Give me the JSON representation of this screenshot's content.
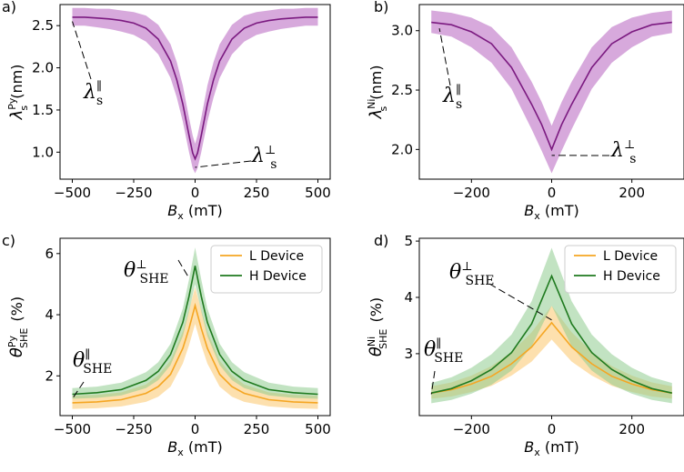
{
  "colors": {
    "purple": "#7b1a80",
    "purple_band": "#c27bc9",
    "orange": "#f5a623",
    "orange_band": "#fcd38c",
    "green": "#1f7a1f",
    "green_band": "#8fcc8f"
  },
  "chart_data": [
    {
      "panel": "a)",
      "type": "line",
      "xlabel_main": "B",
      "xlabel_sub": "x",
      "xlabel_unit": " (mT)",
      "ylabel_main": "λ",
      "ylabel_sub": "s",
      "ylabel_sup": "Py",
      "ylabel_unit": " (nm)",
      "xlim": [
        -550,
        550
      ],
      "ylim": [
        0.68,
        2.75
      ],
      "xticks": [
        -500,
        -250,
        0,
        250,
        500
      ],
      "xtick_labels": [
        "−500",
        "−250",
        "0",
        "250",
        "500"
      ],
      "yticks": [
        1.0,
        1.5,
        2.0,
        2.5
      ],
      "ytick_labels": [
        "1.0",
        "1.5",
        "2.0",
        "2.5"
      ],
      "series": [
        {
          "x": [
            -500,
            -450,
            -400,
            -350,
            -300,
            -250,
            -200,
            -150,
            -100,
            -75,
            -50,
            -25,
            -10,
            0,
            10,
            25,
            50,
            75,
            100,
            150,
            200,
            250,
            300,
            350,
            400,
            450,
            500
          ],
          "y": [
            2.6,
            2.6,
            2.59,
            2.58,
            2.56,
            2.53,
            2.47,
            2.34,
            2.08,
            1.86,
            1.57,
            1.2,
            0.99,
            0.92,
            0.99,
            1.2,
            1.57,
            1.86,
            2.08,
            2.34,
            2.47,
            2.53,
            2.56,
            2.58,
            2.59,
            2.6,
            2.6
          ],
          "lower": [
            2.5,
            2.5,
            2.48,
            2.46,
            2.43,
            2.39,
            2.31,
            2.16,
            1.88,
            1.65,
            1.36,
            1.0,
            0.81,
            0.75,
            0.81,
            1.0,
            1.36,
            1.65,
            1.88,
            2.16,
            2.31,
            2.39,
            2.43,
            2.46,
            2.48,
            2.5,
            2.5
          ],
          "upper": [
            2.71,
            2.71,
            2.7,
            2.7,
            2.68,
            2.66,
            2.62,
            2.51,
            2.28,
            2.07,
            1.79,
            1.41,
            1.2,
            1.1,
            1.2,
            1.41,
            1.79,
            2.07,
            2.28,
            2.51,
            2.62,
            2.66,
            2.68,
            2.7,
            2.7,
            2.71,
            2.71
          ]
        }
      ],
      "annotations": [
        {
          "main": "λ",
          "sub": "s",
          "sup": "∥",
          "target": [
            -500,
            2.55
          ]
        },
        {
          "main": "λ",
          "sub": "s",
          "sup": "⊥",
          "target": [
            0,
            0.82
          ]
        }
      ]
    },
    {
      "panel": "b)",
      "type": "line",
      "xlabel_main": "B",
      "xlabel_sub": "x",
      "xlabel_unit": " (mT)",
      "ylabel_main": "λ",
      "ylabel_sub": "s",
      "ylabel_sup": "Ni",
      "ylabel_unit": " (nm)",
      "xlim": [
        -330,
        330
      ],
      "ylim": [
        1.75,
        3.22
      ],
      "xticks": [
        -200,
        0,
        200
      ],
      "xtick_labels": [
        "−200",
        "0",
        "200"
      ],
      "yticks": [
        2.0,
        2.5,
        3.0
      ],
      "ytick_labels": [
        "2.0",
        "2.5",
        "3.0"
      ],
      "series": [
        {
          "x": [
            -300,
            -250,
            -200,
            -150,
            -100,
            -50,
            -25,
            0,
            25,
            50,
            100,
            150,
            200,
            250,
            300
          ],
          "y": [
            3.07,
            3.05,
            2.99,
            2.89,
            2.69,
            2.38,
            2.21,
            2.0,
            2.21,
            2.38,
            2.69,
            2.89,
            2.99,
            3.05,
            3.07
          ],
          "lower": [
            2.98,
            2.95,
            2.86,
            2.73,
            2.51,
            2.17,
            1.99,
            1.8,
            1.99,
            2.17,
            2.51,
            2.73,
            2.86,
            2.95,
            2.98
          ],
          "upper": [
            3.17,
            3.15,
            3.11,
            3.03,
            2.86,
            2.57,
            2.4,
            2.2,
            2.4,
            2.57,
            2.86,
            3.03,
            3.11,
            3.15,
            3.17
          ]
        }
      ],
      "annotations": [
        {
          "main": "λ",
          "sub": "s",
          "sup": "∥",
          "target": [
            -280,
            3.02
          ]
        },
        {
          "main": "λ",
          "sub": "s",
          "sup": "⊥",
          "target": [
            0,
            1.95
          ]
        }
      ]
    },
    {
      "panel": "c)",
      "type": "line",
      "xlabel_main": "B",
      "xlabel_sub": "x",
      "xlabel_unit": " (mT)",
      "ylabel_main": "θ",
      "ylabel_sub": "SHE",
      "ylabel_sup": "Py",
      "ylabel_unit": " (%)",
      "xlim": [
        -550,
        550
      ],
      "ylim": [
        0.7,
        6.5
      ],
      "xticks": [
        -500,
        -250,
        0,
        250,
        500
      ],
      "xtick_labels": [
        "−500",
        "−250",
        "0",
        "250",
        "500"
      ],
      "yticks": [
        2,
        4,
        6
      ],
      "ytick_labels": [
        "2",
        "4",
        "6"
      ],
      "legend": {
        "position": "top-right",
        "entries": [
          "L Device",
          "H Device"
        ]
      },
      "series": [
        {
          "name": "L Device",
          "x": [
            -500,
            -400,
            -300,
            -200,
            -150,
            -100,
            -50,
            -25,
            0,
            25,
            50,
            100,
            150,
            200,
            300,
            400,
            500
          ],
          "y": [
            1.12,
            1.15,
            1.22,
            1.43,
            1.65,
            2.05,
            2.9,
            3.55,
            4.3,
            3.55,
            2.9,
            2.05,
            1.65,
            1.43,
            1.22,
            1.15,
            1.12
          ],
          "lower": [
            0.92,
            0.94,
            1.0,
            1.15,
            1.32,
            1.65,
            2.4,
            3.0,
            3.7,
            3.0,
            2.4,
            1.65,
            1.32,
            1.15,
            1.0,
            0.94,
            0.92
          ],
          "upper": [
            1.35,
            1.38,
            1.46,
            1.72,
            2.02,
            2.5,
            3.45,
            4.15,
            4.9,
            4.15,
            3.45,
            2.5,
            2.02,
            1.72,
            1.46,
            1.38,
            1.35
          ]
        },
        {
          "name": "H Device",
          "x": [
            -500,
            -400,
            -300,
            -200,
            -150,
            -100,
            -50,
            -25,
            0,
            25,
            50,
            100,
            150,
            200,
            300,
            400,
            500
          ],
          "y": [
            1.4,
            1.45,
            1.55,
            1.85,
            2.15,
            2.7,
            3.75,
            4.6,
            5.6,
            4.6,
            3.75,
            2.7,
            2.15,
            1.85,
            1.55,
            1.45,
            1.4
          ],
          "lower": [
            1.25,
            1.28,
            1.36,
            1.6,
            1.86,
            2.35,
            3.3,
            4.1,
            5.0,
            4.1,
            3.3,
            2.35,
            1.86,
            1.6,
            1.36,
            1.28,
            1.25
          ],
          "upper": [
            1.6,
            1.65,
            1.78,
            2.12,
            2.45,
            3.05,
            4.2,
            5.15,
            6.2,
            5.15,
            4.2,
            3.05,
            2.45,
            2.12,
            1.78,
            1.65,
            1.6
          ]
        }
      ],
      "annotations": [
        {
          "main": "θ",
          "sub": "SHE",
          "sup": "⊥",
          "target": [
            -25,
            5.2
          ]
        },
        {
          "main": "θ",
          "sub": "SHE",
          "sup": "∥",
          "target": [
            -500,
            1.25
          ]
        }
      ]
    },
    {
      "panel": "d)",
      "type": "line",
      "xlabel_main": "B",
      "xlabel_sub": "x",
      "xlabel_unit": " (mT)",
      "ylabel_main": "θ",
      "ylabel_sub": "SHE",
      "ylabel_sup": "Ni",
      "ylabel_unit": " (%)",
      "xlim": [
        -330,
        330
      ],
      "ylim": [
        1.9,
        5.05
      ],
      "xticks": [
        -200,
        0,
        200
      ],
      "xtick_labels": [
        "−200",
        "0",
        "200"
      ],
      "yticks": [
        3,
        4,
        5
      ],
      "ytick_labels": [
        "3",
        "4",
        "5"
      ],
      "legend": {
        "position": "top-right",
        "entries": [
          "L Device",
          "H Device"
        ]
      },
      "series": [
        {
          "name": "L Device",
          "x": [
            -300,
            -250,
            -200,
            -150,
            -100,
            -50,
            0,
            50,
            100,
            150,
            200,
            250,
            300
          ],
          "y": [
            2.3,
            2.36,
            2.46,
            2.6,
            2.82,
            3.12,
            3.55,
            3.12,
            2.82,
            2.6,
            2.46,
            2.36,
            2.3
          ],
          "lower": [
            2.2,
            2.24,
            2.32,
            2.43,
            2.61,
            2.86,
            3.25,
            2.86,
            2.61,
            2.43,
            2.32,
            2.24,
            2.2
          ],
          "upper": [
            2.42,
            2.49,
            2.61,
            2.78,
            3.03,
            3.38,
            3.85,
            3.38,
            3.03,
            2.78,
            2.61,
            2.49,
            2.42
          ]
        },
        {
          "name": "H Device",
          "x": [
            -300,
            -250,
            -200,
            -150,
            -100,
            -50,
            0,
            50,
            100,
            150,
            200,
            250,
            300
          ],
          "y": [
            2.3,
            2.38,
            2.52,
            2.72,
            3.02,
            3.53,
            4.38,
            3.53,
            3.02,
            2.72,
            2.52,
            2.38,
            2.3
          ],
          "lower": [
            2.12,
            2.18,
            2.29,
            2.45,
            2.7,
            3.13,
            3.85,
            3.13,
            2.7,
            2.45,
            2.29,
            2.18,
            2.12
          ],
          "upper": [
            2.48,
            2.58,
            2.75,
            2.99,
            3.34,
            3.93,
            4.88,
            3.93,
            3.34,
            2.99,
            2.75,
            2.58,
            2.48
          ]
        }
      ],
      "annotations": [
        {
          "main": "θ",
          "sub": "SHE",
          "sup": "⊥",
          "target": [
            0,
            3.6
          ]
        },
        {
          "main": "θ",
          "sub": "SHE",
          "sup": "∥",
          "target": [
            -300,
            2.28
          ]
        }
      ]
    }
  ]
}
